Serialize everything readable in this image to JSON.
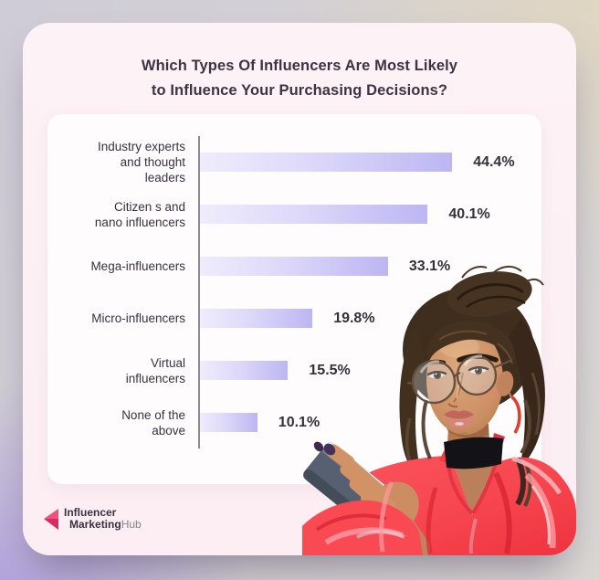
{
  "page": {
    "background_top_left": "#cfccd7",
    "background_top_right": "#ded3c0",
    "background_bottom_left": "#a893e2",
    "card_background": "#fcf0f5"
  },
  "title": {
    "line1": "Which Types Of Influencers Are Most Likely",
    "line2": "to Influence Your Purchasing Decisions?",
    "color": "#3c3442"
  },
  "chart_data": {
    "type": "bar",
    "orientation": "horizontal",
    "title": "Which Types Of Influencers Are Most Likely to Influence Your Purchasing Decisions?",
    "categories": [
      [
        "Industry experts",
        "and thought",
        "leaders"
      ],
      [
        "Citizen s and",
        "nano influencers"
      ],
      [
        "Mega-influencers"
      ],
      [
        "Micro-influencers"
      ],
      [
        "Virtual",
        "influencers"
      ],
      [
        "None of the",
        "above"
      ]
    ],
    "values": [
      44.4,
      40.1,
      33.1,
      19.8,
      15.5,
      10.1
    ],
    "value_labels": [
      "44.4%",
      "40.1%",
      "33.1%",
      "19.8%",
      "15.5%",
      "10.1%"
    ],
    "xlim": [
      0,
      50
    ],
    "grid": false,
    "legend": false,
    "bar_color_start": "#efecfd",
    "bar_color_end": "#bcb6f2",
    "axis_color": "#8e8b90",
    "label_color": "#38323e",
    "value_color": "#343038"
  },
  "logo": {
    "line1": "Influencer",
    "line2_bold": "Marketing",
    "line2_light": "Hub",
    "icon_color_top": "#ef537b",
    "icon_color_bottom": "#d62c62"
  },
  "illustration": {
    "description": "Young woman with a messy bun, round wire glasses, black choker and glossy red jacket holding a smartphone"
  }
}
